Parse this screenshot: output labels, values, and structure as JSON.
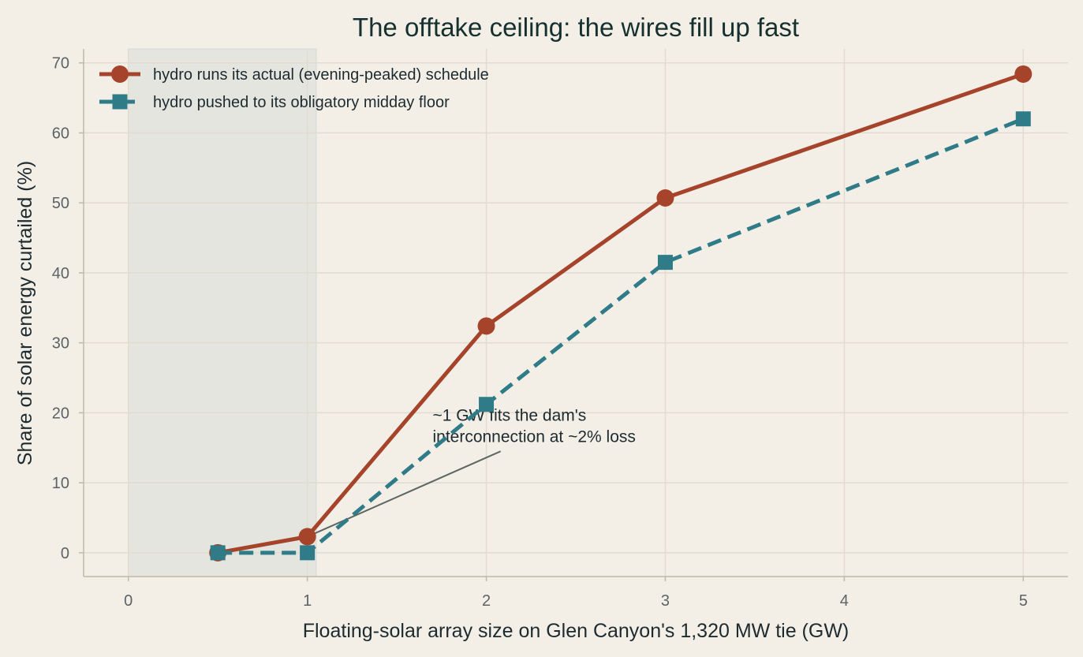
{
  "chart_data": {
    "type": "line",
    "title": "The offtake ceiling: the wires fill up fast",
    "xlabel": "Floating-solar array size on Glen Canyon's 1,320 MW tie (GW)",
    "ylabel": "Share of solar energy curtailed (%)",
    "xlim": [
      -0.25,
      5.25
    ],
    "ylim": [
      -3.4,
      72
    ],
    "xticks": [
      0,
      1,
      2,
      3,
      4,
      5
    ],
    "yticks": [
      0,
      10,
      20,
      30,
      40,
      50,
      60,
      70
    ],
    "grid": true,
    "legend_position": "top-left",
    "shaded_region": {
      "x_start": 0,
      "x_end": 1.05,
      "color": "#e4e5df"
    },
    "series": [
      {
        "name": "hydro runs its actual (evening-peaked) schedule",
        "x": [
          0.5,
          1,
          2,
          3,
          5
        ],
        "y": [
          0.0,
          2.3,
          32.4,
          50.7,
          68.4
        ],
        "color": "#a5432b",
        "marker": "circle",
        "style": "solid"
      },
      {
        "name": "hydro pushed to its obligatory midday floor",
        "x": [
          0.5,
          1,
          2,
          3,
          5
        ],
        "y": [
          0.0,
          0.0,
          21.2,
          41.5,
          62.0
        ],
        "color": "#2f7b88",
        "marker": "square",
        "style": "dashed"
      }
    ],
    "annotations": [
      {
        "lines": [
          "~1 GW fits the dam's",
          "interconnection at ~2% loss"
        ],
        "text_anchor_xy": [
          1.7,
          20
        ],
        "arrow_target_xy": [
          1,
          2.3
        ],
        "arrow_tail_xy": [
          2.08,
          14.5
        ]
      }
    ]
  }
}
